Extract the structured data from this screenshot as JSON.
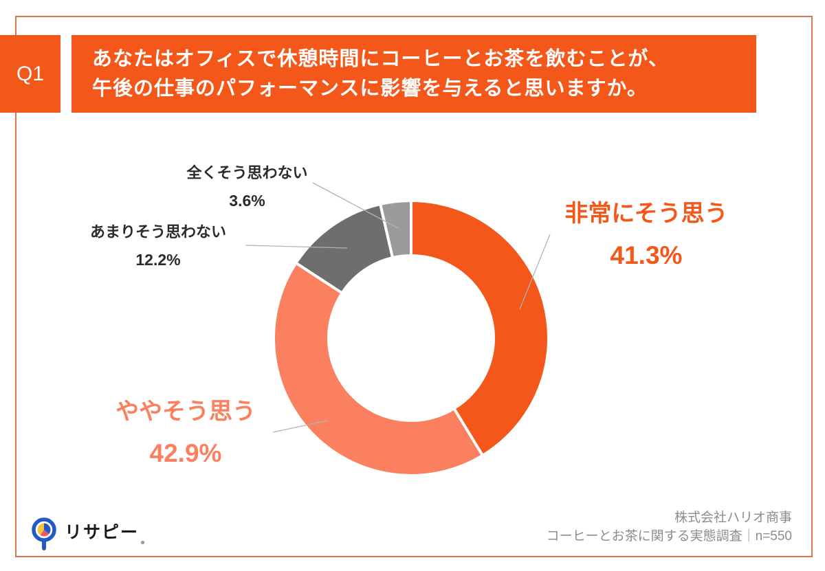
{
  "header": {
    "q_label": "Q1",
    "question_line1": "あなたはオフィスで休憩時間にコーヒーとお茶を飲むことが、",
    "question_line2": "午後の仕事のパフォーマンスに影響を与えると思いますか。"
  },
  "chart_data": {
    "type": "pie",
    "subtype": "donut",
    "title": "",
    "start_angle_deg": 0,
    "direction": "clockwise",
    "legend_position": "outside-callout-labels",
    "segments": [
      {
        "label": "非常にそう思う",
        "value": 41.3,
        "pct_label": "41.3%",
        "color": "#F4571A"
      },
      {
        "label": "ややそう思う",
        "value": 42.9,
        "pct_label": "42.9%",
        "color": "#FA8060"
      },
      {
        "label": "あまりそう思わない",
        "value": 12.2,
        "pct_label": "12.2%",
        "color": "#6E6E6E"
      },
      {
        "label": "全くそう思わない",
        "value": 3.6,
        "pct_label": "3.6%",
        "color": "#9B9B9B"
      }
    ]
  },
  "footer": {
    "logo_text": "リサピー",
    "company": "株式会社ハリオ商事",
    "survey": "コーヒーとお茶に関する実態調査｜n=550"
  },
  "colors": {
    "accent_orange": "#F4571A",
    "accent_salmon": "#FA8060",
    "gray_dark": "#6E6E6E",
    "gray_light": "#9B9B9B",
    "frame_border": "#D8754A",
    "leader_line": "#B3B3B3",
    "credit_text": "#8C8C8C",
    "logo_blue": "#2458C5",
    "logo_yellow": "#F3C440",
    "logo_pink": "#E45A6D"
  }
}
